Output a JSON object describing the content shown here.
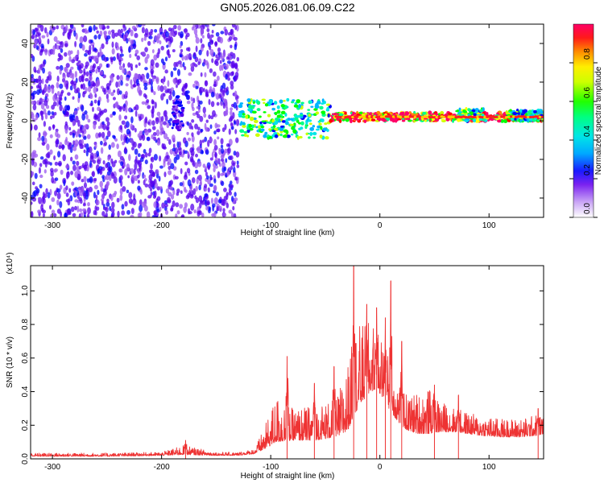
{
  "figure": {
    "title": "GN05.2026.081.06.09.C22"
  },
  "chart_data": [
    {
      "type": "heatmap",
      "xlabel": "Height of straight line (km)",
      "ylabel": "Frequency (Hz)",
      "xlim": [
        -320,
        150
      ],
      "ylim": [
        -50,
        50
      ],
      "x_ticks": [
        -300,
        -200,
        -100,
        0,
        100
      ],
      "x_tick_labels": [
        "-300",
        "-200",
        "-100",
        "0",
        "100"
      ],
      "y_ticks": [
        -40,
        -20,
        0,
        20,
        40
      ],
      "y_tick_labels": [
        "-40",
        "-20",
        "0",
        "20",
        "40"
      ],
      "colorbar": {
        "label": "Normalized spectral amplitude",
        "range": [
          0.0,
          1.0
        ],
        "ticks": [
          0.0,
          0.2,
          0.4,
          0.6,
          0.8
        ],
        "tick_labels": [
          "0.0",
          "0.2",
          "0.4",
          "0.6",
          "0.8"
        ],
        "colormap": "rainbow",
        "colors": [
          "#e8d8f8",
          "#9a55f0",
          "#5500ee",
          "#0000ff",
          "#00b4ff",
          "#00e6e6",
          "#00ff88",
          "#00ff00",
          "#ccff00",
          "#ffff00",
          "#ff8800",
          "#ff0000",
          "#ff0066"
        ]
      },
      "regions": [
        {
          "x_range": [
            -320,
            -130
          ],
          "freq_range": [
            -50,
            50
          ],
          "amplitude": 0.15,
          "description_level": "diffuse"
        },
        {
          "x_range": [
            -190,
            -180
          ],
          "freq_range": [
            -5,
            12
          ],
          "amplitude": 0.2
        },
        {
          "x_range": [
            -128,
            -45
          ],
          "freq_range": [
            -8,
            10
          ],
          "amplitude": 0.5
        },
        {
          "x_range": [
            -45,
            150
          ],
          "freq_range": [
            0,
            4
          ],
          "amplitude": 0.9
        },
        {
          "x_range": [
            70,
            95
          ],
          "freq_range": [
            0,
            6
          ],
          "amplitude": 0.55
        },
        {
          "x_range": [
            115,
            150
          ],
          "freq_range": [
            0,
            5
          ],
          "amplitude": 0.5
        }
      ],
      "ridge_frequency_hz": 2
    },
    {
      "type": "line",
      "xlabel": "Height of straight line (km)",
      "ylabel": "SNR (10 * v/v)",
      "y_multiplier": "(x10⁴)",
      "xlim": [
        -320,
        150
      ],
      "ylim": [
        0,
        1.15
      ],
      "x_ticks": [
        -300,
        -200,
        -100,
        0,
        100
      ],
      "x_tick_labels": [
        "-300",
        "-200",
        "-100",
        "0",
        "100"
      ],
      "y_ticks": [
        0.0,
        0.2,
        0.4,
        0.6,
        0.8,
        1.0
      ],
      "y_tick_labels": [
        "0.0",
        "0.2",
        "0.4",
        "0.6",
        "0.8",
        "1.0"
      ],
      "color": "#ee3333",
      "envelope": {
        "x": [
          -320,
          -250,
          -200,
          -180,
          -150,
          -130,
          -115,
          -105,
          -95,
          -80,
          -60,
          -40,
          -30,
          -22,
          -15,
          -8,
          -3,
          3,
          8,
          12,
          18,
          25,
          35,
          45,
          55,
          70,
          90,
          110,
          130,
          145,
          150
        ],
        "base": [
          0.015,
          0.015,
          0.02,
          0.025,
          0.02,
          0.02,
          0.03,
          0.06,
          0.1,
          0.11,
          0.11,
          0.13,
          0.16,
          0.28,
          0.35,
          0.4,
          0.42,
          0.36,
          0.3,
          0.26,
          0.21,
          0.17,
          0.15,
          0.15,
          0.16,
          0.16,
          0.14,
          0.13,
          0.13,
          0.14,
          0.15
        ],
        "peak": [
          0.035,
          0.035,
          0.04,
          0.08,
          0.04,
          0.04,
          0.06,
          0.2,
          0.38,
          0.3,
          0.32,
          0.36,
          0.55,
          0.8,
          0.8,
          0.82,
          0.8,
          0.7,
          0.62,
          0.55,
          0.48,
          0.38,
          0.4,
          0.42,
          0.35,
          0.3,
          0.26,
          0.24,
          0.24,
          0.27,
          0.25
        ]
      },
      "spikes": [
        {
          "x": -178,
          "y": 0.11
        },
        {
          "x": -85,
          "y": 0.61
        },
        {
          "x": -60,
          "y": 0.45
        },
        {
          "x": -42,
          "y": 0.55
        },
        {
          "x": -24,
          "y": 1.15
        },
        {
          "x": -12,
          "y": 0.92
        },
        {
          "x": -3,
          "y": 0.9
        },
        {
          "x": 5,
          "y": 0.84
        },
        {
          "x": 10,
          "y": 1.06
        },
        {
          "x": 20,
          "y": 0.7
        },
        {
          "x": 50,
          "y": 0.44
        },
        {
          "x": 72,
          "y": 0.38
        },
        {
          "x": 145,
          "y": 0.3
        }
      ]
    }
  ]
}
